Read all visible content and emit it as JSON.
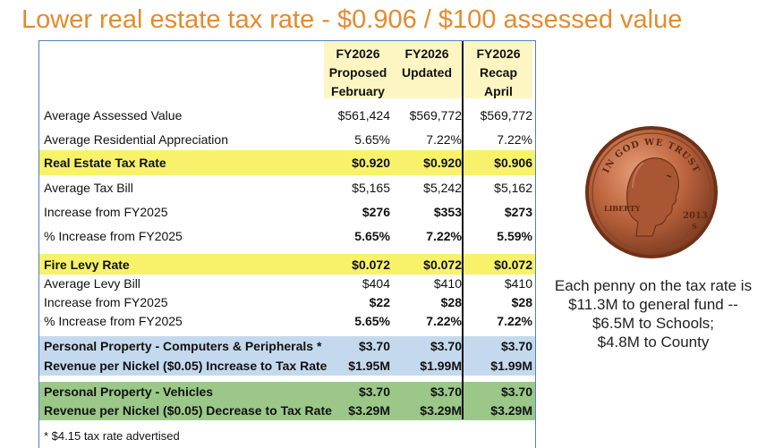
{
  "title": "Lower real estate tax rate - $0.906 / $100 assessed value",
  "table": {
    "columns": [
      {
        "header": "FY2026\nProposed\nFebruary"
      },
      {
        "header": "FY2026\nUpdated"
      },
      {
        "header": "FY2026\nRecap\nApril"
      }
    ],
    "rows": [
      {
        "label": "Average Assessed Value",
        "values": [
          "$561,424",
          "$569,772",
          "$569,772"
        ]
      },
      {
        "label": "Average Residential Appreciation",
        "values": [
          "5.65%",
          "7.22%",
          "7.22%"
        ]
      },
      {
        "label": "Real Estate Tax Rate",
        "values": [
          "$0.920",
          "$0.920",
          "$0.906"
        ]
      },
      {
        "label": "Average Tax Bill",
        "values": [
          "$5,165",
          "$5,242",
          "$5,162"
        ]
      },
      {
        "label": "Increase from FY2025",
        "values": [
          "$276",
          "$353",
          "$273"
        ]
      },
      {
        "label": "% Increase from FY2025",
        "values": [
          "5.65%",
          "7.22%",
          "5.59%"
        ]
      },
      {
        "label": "Fire Levy Rate",
        "values": [
          "$0.072",
          "$0.072",
          "$0.072"
        ]
      },
      {
        "label": "Average Levy Bill",
        "values": [
          "$404",
          "$410",
          "$410"
        ]
      },
      {
        "label": "Increase from FY2025",
        "values": [
          "$22",
          "$28",
          "$28"
        ]
      },
      {
        "label": "% Increase from FY2025",
        "values": [
          "5.65%",
          "7.22%",
          "7.22%"
        ]
      },
      {
        "label": "Personal Property - Computers & Peripherals *",
        "values": [
          "$3.70",
          "$3.70",
          "$3.70"
        ]
      },
      {
        "label": "Revenue per Nickel ($0.05) Increase to Tax Rate",
        "values": [
          "$1.95M",
          "$1.99M",
          "$1.99M"
        ]
      },
      {
        "label": "Personal Property - Vehicles",
        "values": [
          "$3.70",
          "$3.70",
          "$3.70"
        ]
      },
      {
        "label": "Revenue per Nickel ($0.05) Decrease to Tax Rate",
        "values": [
          "$3.29M",
          "$3.29M",
          "$3.29M"
        ]
      }
    ],
    "footnote": "* $4.15 tax rate advertised",
    "colors": {
      "yellow_band": "#f7f26a",
      "blue_band": "#c5d9ee",
      "green_band": "#9bc888",
      "header_band": "#fdf5c2",
      "title": "#e58a2e"
    }
  },
  "penny": {
    "motto": "IN GOD WE TRUST",
    "liberty": "LIBERTY",
    "year": "2013",
    "mint": "S"
  },
  "side_note": [
    "Each penny on the tax rate is",
    "$11.3M to general fund --",
    "$6.5M to Schools;",
    "$4.8M to County"
  ]
}
